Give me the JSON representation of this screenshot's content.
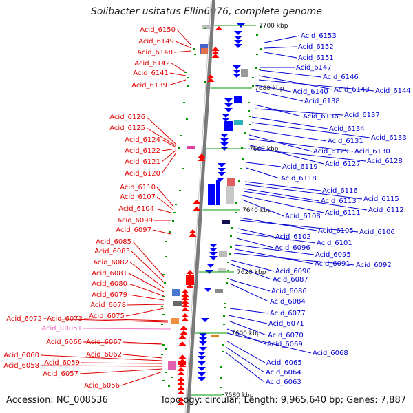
{
  "title": "Solibacter usitatus Ellin6076, complete genome",
  "accession": "Accession: NC_008536",
  "summary": "Topology: circular; Length: 9,965,640 bp; Genes: 7,887",
  "colors": {
    "left_label": "#e00000",
    "right_label": "#0000d0",
    "rna_label": "#f070c0",
    "chromosome": "#7a7a7a",
    "gene_red": "#ff0000",
    "gene_blue": "#0000ff",
    "tick_green": "#009900"
  },
  "kbp_marks": [
    {
      "label": "7700 kbp"
    },
    {
      "label": "7680 kbp"
    },
    {
      "label": "7660 kbp"
    },
    {
      "label": "7640 kbp"
    },
    {
      "label": "7620 kbp"
    },
    {
      "label": "7600 kbp"
    },
    {
      "label": "7580 kbp"
    }
  ],
  "left_genes": [
    {
      "label": "Acid_6150"
    },
    {
      "label": "Acid_6149"
    },
    {
      "label": "Acid_6148"
    },
    {
      "label": "Acid_6142"
    },
    {
      "label": "Acid_6141"
    },
    {
      "label": "Acid_6139"
    },
    {
      "label": "Acid_6126"
    },
    {
      "label": "Acid_6125"
    },
    {
      "label": "Acid_6124"
    },
    {
      "label": "Acid_6122"
    },
    {
      "label": "Acid_6121"
    },
    {
      "label": "Acid_6120"
    },
    {
      "label": "Acid_6110"
    },
    {
      "label": "Acid_6107"
    },
    {
      "label": "Acid_6104"
    },
    {
      "label": "Acid_6099"
    },
    {
      "label": "Acid_6097"
    },
    {
      "label": "Acid_6085"
    },
    {
      "label": "Acid_6083"
    },
    {
      "label": "Acid_6082"
    },
    {
      "label": "Acid_6081"
    },
    {
      "label": "Acid_6080"
    },
    {
      "label": "Acid_6079"
    },
    {
      "label": "Acid_6078"
    },
    {
      "label": "Acid_6075"
    },
    {
      "label": "Acid_6073"
    },
    {
      "label": "Acid_6072"
    },
    {
      "label": "Acid_R0051",
      "rna": true
    },
    {
      "label": "Acid_6067"
    },
    {
      "label": "Acid_6066"
    },
    {
      "label": "Acid_6062"
    },
    {
      "label": "Acid_6060"
    },
    {
      "label": "Acid_6059"
    },
    {
      "label": "Acid_6058"
    },
    {
      "label": "Acid_6057"
    },
    {
      "label": "Acid_6056"
    }
  ],
  "right_genes": [
    {
      "label": "Acid_6153"
    },
    {
      "label": "Acid_6152"
    },
    {
      "label": "Acid_6151"
    },
    {
      "label": "Acid_6147"
    },
    {
      "label": "Acid_6146"
    },
    {
      "label": "Acid_6143"
    },
    {
      "label": "Acid_6144"
    },
    {
      "label": "Acid_6140"
    },
    {
      "label": "Acid_6138"
    },
    {
      "label": "Acid_6136"
    },
    {
      "label": "Acid_6137"
    },
    {
      "label": "Acid_6134"
    },
    {
      "label": "Acid_6133"
    },
    {
      "label": "Acid_6131"
    },
    {
      "label": "Acid_6129"
    },
    {
      "label": "Acid_6130"
    },
    {
      "label": "Acid_6127"
    },
    {
      "label": "Acid_6128"
    },
    {
      "label": "Acid_6119"
    },
    {
      "label": "Acid_6118"
    },
    {
      "label": "Acid_6116"
    },
    {
      "label": "Acid_6115"
    },
    {
      "label": "Acid_6113"
    },
    {
      "label": "Acid_6112"
    },
    {
      "label": "Acid_6111"
    },
    {
      "label": "Acid_6108"
    },
    {
      "label": "Acid_6105"
    },
    {
      "label": "Acid_6106"
    },
    {
      "label": "Acid_6102"
    },
    {
      "label": "Acid_6101"
    },
    {
      "label": "Acid_6096"
    },
    {
      "label": "Acid_6095"
    },
    {
      "label": "Acid_6091"
    },
    {
      "label": "Acid_6092"
    },
    {
      "label": "Acid_6090"
    },
    {
      "label": "Acid_6087"
    },
    {
      "label": "Acid_6086"
    },
    {
      "label": "Acid_6084"
    },
    {
      "label": "Acid_6077"
    },
    {
      "label": "Acid_6071"
    },
    {
      "label": "Acid_6070"
    },
    {
      "label": "Acid_6069"
    },
    {
      "label": "Acid_6068"
    },
    {
      "label": "Acid_6065"
    },
    {
      "label": "Acid_6064"
    },
    {
      "label": "Acid_6063"
    }
  ]
}
